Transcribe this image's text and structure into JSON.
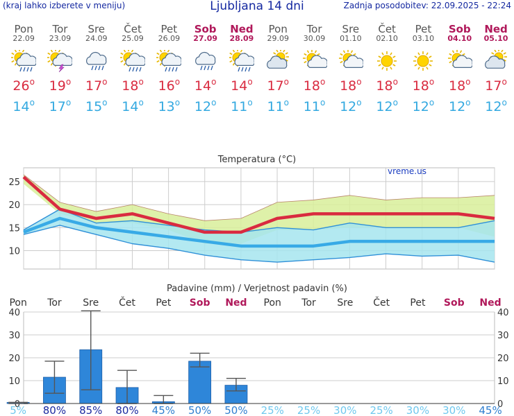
{
  "header": {
    "menu_hint": "(kraj lahko izberete v meniju)",
    "title": "Ljubljana 14 dni",
    "last_update": "Zadnja posodobitev: 22.09.2025 - 22:24"
  },
  "days": [
    {
      "name": "Pon",
      "date": "22.09",
      "weekend": false,
      "icon": "sun-cloud-rain-icon",
      "tmax": "26",
      "tmin": "14"
    },
    {
      "name": "Tor",
      "date": "23.09",
      "weekend": false,
      "icon": "sun-cloud-thunder-icon",
      "tmax": "19",
      "tmin": "17"
    },
    {
      "name": "Sre",
      "date": "24.09",
      "weekend": false,
      "icon": "cloud-rain-icon",
      "tmax": "17",
      "tmin": "15"
    },
    {
      "name": "Čet",
      "date": "25.09",
      "weekend": false,
      "icon": "sun-cloud-rain-icon",
      "tmax": "18",
      "tmin": "14"
    },
    {
      "name": "Pet",
      "date": "26.09",
      "weekend": false,
      "icon": "sun-cloud-rain-icon",
      "tmax": "16",
      "tmin": "13"
    },
    {
      "name": "Sob",
      "date": "27.09",
      "weekend": true,
      "icon": "cloud-rain-icon",
      "tmax": "14",
      "tmin": "12"
    },
    {
      "name": "Ned",
      "date": "28.09",
      "weekend": true,
      "icon": "sun-cloud-rain-icon",
      "tmax": "14",
      "tmin": "11"
    },
    {
      "name": "Pon",
      "date": "29.09",
      "weekend": false,
      "icon": "cloud-sun-icon",
      "tmax": "17",
      "tmin": "11"
    },
    {
      "name": "Tor",
      "date": "30.09",
      "weekend": false,
      "icon": "sun-cloud-icon",
      "tmax": "18",
      "tmin": "11"
    },
    {
      "name": "Sre",
      "date": "01.10",
      "weekend": false,
      "icon": "sun-cloud-icon",
      "tmax": "18",
      "tmin": "12"
    },
    {
      "name": "Čet",
      "date": "02.10",
      "weekend": false,
      "icon": "sun-icon",
      "tmax": "18",
      "tmin": "12"
    },
    {
      "name": "Pet",
      "date": "03.10",
      "weekend": false,
      "icon": "sun-icon",
      "tmax": "18",
      "tmin": "12"
    },
    {
      "name": "Sob",
      "date": "04.10",
      "weekend": true,
      "icon": "sun-cloud-icon",
      "tmax": "18",
      "tmin": "12"
    },
    {
      "name": "Ned",
      "date": "05.10",
      "weekend": true,
      "icon": "cloud-sun-icon",
      "tmax": "17",
      "tmin": "12"
    }
  ],
  "colors": {
    "title_blue": "#1428a0",
    "weekend": "#b0185a",
    "tmax": "#d92b40",
    "tmin": "#32a8e0",
    "max_band": "#d8ef9a",
    "min_band": "#a6e5ef",
    "bar": "#2e86d9"
  },
  "chart_data": [
    {
      "type": "line",
      "title": "Temperatura (°C)",
      "watermark": "vreme.us",
      "ylim": [
        6,
        28
      ],
      "yticks": [
        10,
        15,
        20,
        25
      ],
      "grid": true,
      "x": [
        "22.09",
        "23.09",
        "24.09",
        "25.09",
        "26.09",
        "27.09",
        "28.09",
        "29.09",
        "30.09",
        "01.10",
        "02.10",
        "03.10",
        "04.10",
        "05.10"
      ],
      "series": [
        {
          "values": [
            26,
            19,
            17,
            18,
            16,
            14,
            14,
            17,
            18,
            18,
            18,
            18,
            18,
            17
          ]
        },
        {
          "values": [
            14,
            17,
            15,
            14,
            13,
            12,
            11,
            11,
            11,
            12,
            12,
            12,
            12,
            12
          ]
        }
      ],
      "bands": {
        "max_upper": [
          26.5,
          20.5,
          18.5,
          20,
          18,
          16.5,
          17,
          20.5,
          21,
          22,
          21,
          21.5,
          21.5,
          22
        ],
        "max_lower": [
          24.5,
          18,
          16,
          16,
          14.5,
          11.5,
          11.5,
          14.5,
          14.5,
          15,
          15,
          15,
          15,
          13
        ],
        "min_upper": [
          14.5,
          19,
          16,
          16.5,
          15.5,
          14.5,
          14,
          15,
          14.5,
          16,
          15,
          15,
          15,
          16.5
        ],
        "min_lower": [
          13.5,
          15.5,
          13.5,
          11.5,
          10.5,
          9,
          8,
          7.5,
          8,
          8.5,
          9.3,
          8.8,
          9,
          7.5
        ]
      }
    },
    {
      "type": "bar",
      "title": "Padavine (mm) / Verjetnost padavin (%)",
      "ylim": [
        0,
        40
      ],
      "yticks": [
        0,
        10,
        20,
        30,
        40
      ],
      "categories": [
        "Pon",
        "Tor",
        "Sre",
        "Čet",
        "Pet",
        "Sob",
        "Ned",
        "Pon",
        "Tor",
        "Sre",
        "Čet",
        "Pet",
        "Sob",
        "Ned"
      ],
      "weekend": [
        false,
        false,
        false,
        false,
        false,
        true,
        true,
        false,
        false,
        false,
        false,
        false,
        true,
        true
      ],
      "values": [
        0.5,
        11.5,
        23.5,
        7,
        0.8,
        18.5,
        8,
        0,
        0,
        0,
        0,
        0,
        0,
        0
      ],
      "error_low": [
        0,
        4.5,
        6,
        0,
        0,
        16,
        5.5,
        0,
        0,
        0,
        0,
        0,
        0,
        0
      ],
      "error_high": [
        0.5,
        18.5,
        40.5,
        14.5,
        3.5,
        22,
        11,
        0,
        0,
        0,
        0,
        0,
        0,
        0
      ],
      "probability": [
        "5%",
        "80%",
        "85%",
        "80%",
        "45%",
        "50%",
        "50%",
        "25%",
        "25%",
        "30%",
        "25%",
        "30%",
        "30%",
        "45%"
      ],
      "probability_level": [
        5,
        80,
        85,
        80,
        45,
        50,
        50,
        25,
        25,
        30,
        25,
        30,
        30,
        45
      ]
    }
  ]
}
